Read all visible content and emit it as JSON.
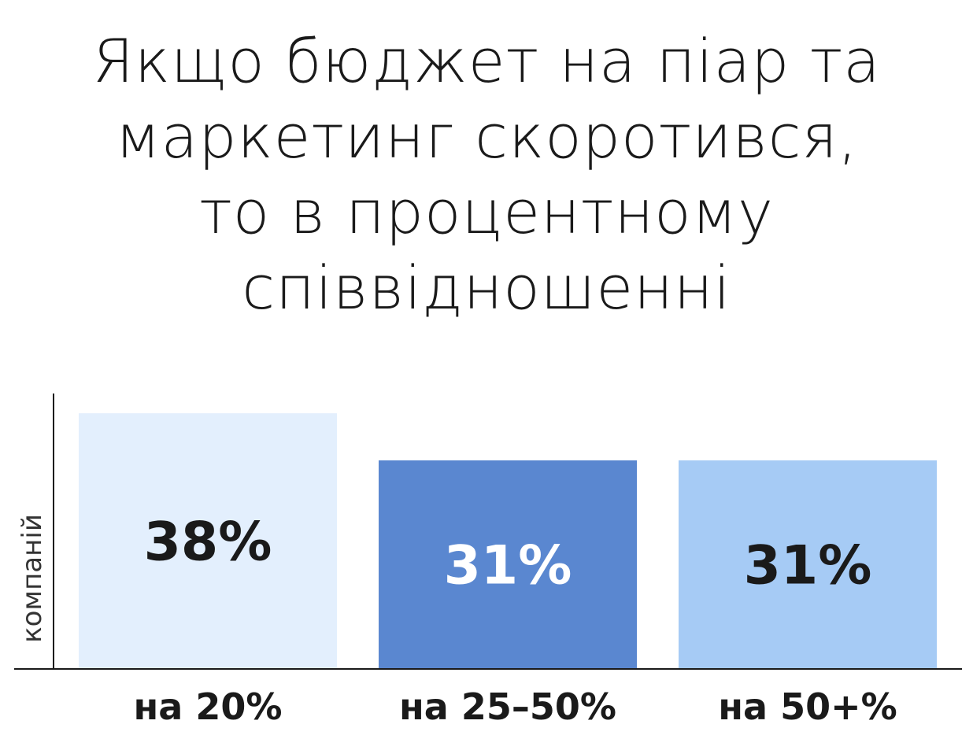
{
  "chart_data": {
    "type": "bar",
    "title_lines": [
      "Якщо бюджет на піар та",
      "маркетинг скоротився,",
      "то в процентному",
      "співвідношенні"
    ],
    "categories": [
      "на 20%",
      "на 25–50%",
      "на 50+%"
    ],
    "values": [
      38,
      31,
      31
    ],
    "value_labels": [
      "38%",
      "31%",
      "31%"
    ],
    "ylabel": "компаній",
    "xlabel": "",
    "ylim": [
      0,
      40
    ],
    "grid": false,
    "bar_colors": [
      "#e3effd",
      "#5a87d0",
      "#a6cbf5"
    ],
    "value_label_colors": [
      "#1a1a1a",
      "#ffffff",
      "#1a1a1a"
    ],
    "axis_color": "#1a1a1a"
  }
}
